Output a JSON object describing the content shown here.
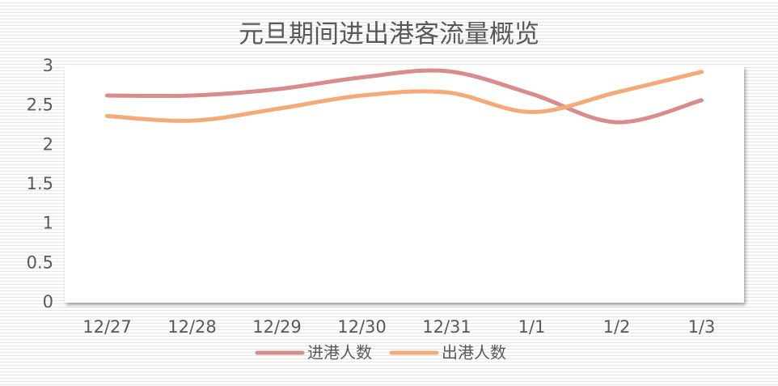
{
  "chart_data": {
    "type": "line",
    "title": "元旦期间进出港客流量概览",
    "categories": [
      "12/27",
      "12/28",
      "12/29",
      "12/30",
      "12/31",
      "1/1",
      "1/2",
      "1/3"
    ],
    "series": [
      {
        "name": "进港人数",
        "color": "#d88c8c",
        "values": [
          2.63,
          2.63,
          2.71,
          2.86,
          2.94,
          2.65,
          2.29,
          2.57
        ]
      },
      {
        "name": "出港人数",
        "color": "#f4aa78",
        "values": [
          2.37,
          2.31,
          2.46,
          2.63,
          2.67,
          2.42,
          2.67,
          2.93
        ]
      }
    ],
    "ylim": [
      0,
      3
    ],
    "yticks": [
      0,
      0.5,
      1,
      1.5,
      2,
      2.5,
      3
    ],
    "grid": false,
    "smooth": true,
    "legend": "bottom"
  }
}
